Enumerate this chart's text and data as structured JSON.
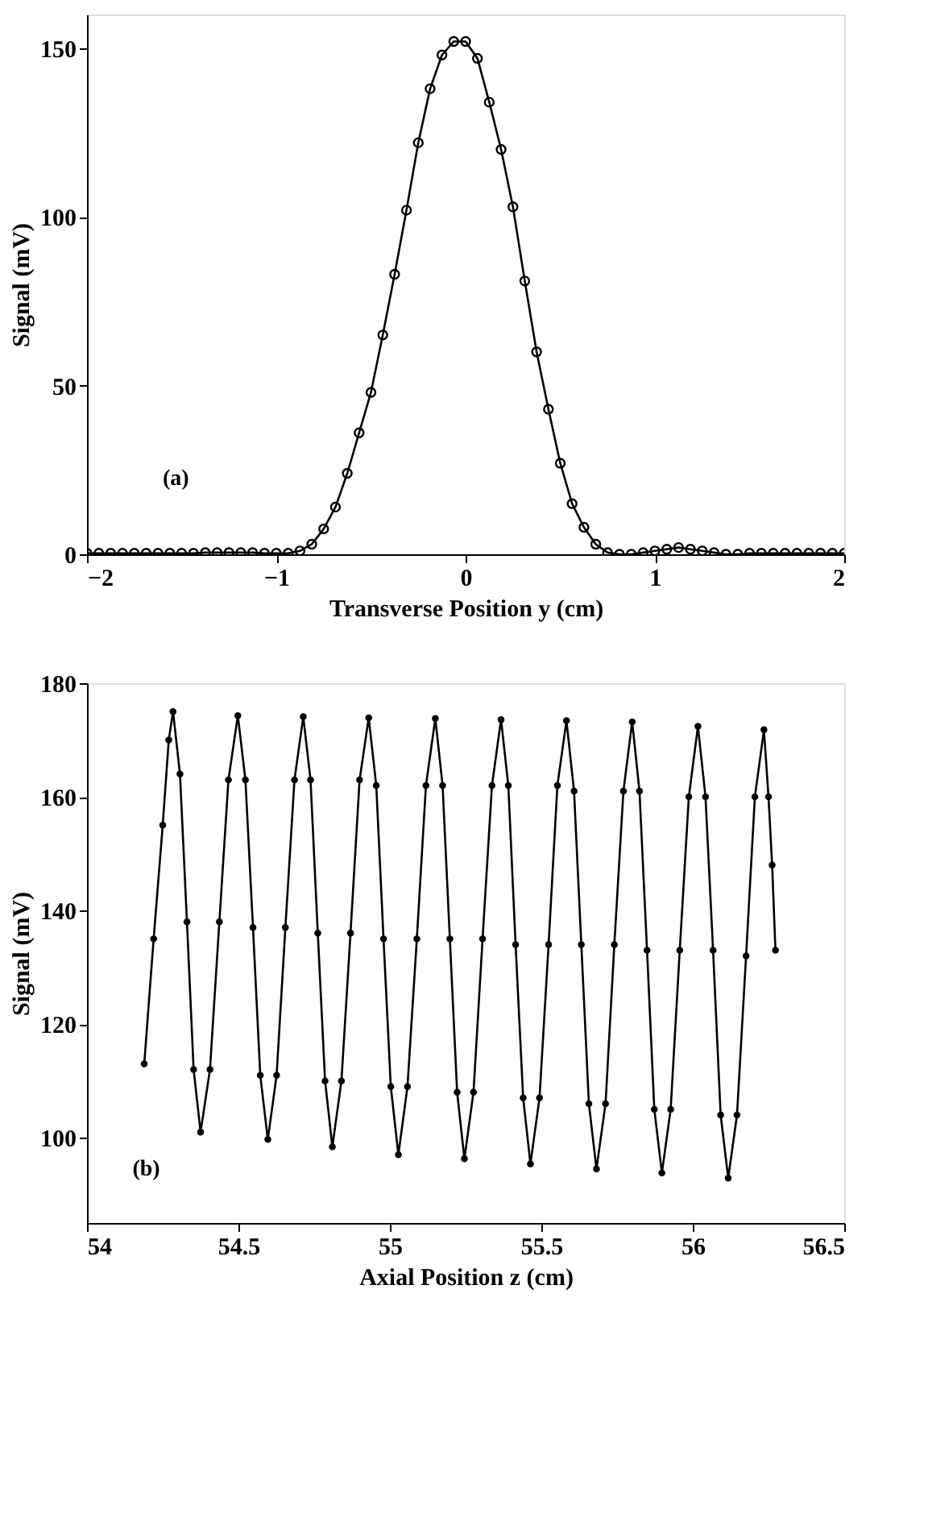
{
  "chart_data": [
    {
      "type": "line",
      "marker": "circle",
      "grid": false,
      "xlabel": "Transverse Position y (cm)",
      "ylabel": "Signal (mV)",
      "annotations": [
        "(a)"
      ],
      "xlim": [
        -2,
        2
      ],
      "ylim": [
        0,
        160
      ],
      "xticks": [
        -2,
        -1,
        0,
        1,
        2
      ],
      "yticks": [
        0,
        50,
        100,
        150
      ],
      "x": [
        -2,
        -1.9375,
        -1.875,
        -1.8125,
        -1.75,
        -1.6875,
        -1.625,
        -1.5625,
        -1.5,
        -1.4375,
        -1.375,
        -1.3125,
        -1.25,
        -1.1875,
        -1.125,
        -1.0625,
        -1,
        -0.9375,
        -0.875,
        -0.8125,
        -0.75,
        -0.6875,
        -0.625,
        -0.5625,
        -0.5,
        -0.4375,
        -0.375,
        -0.3125,
        -0.25,
        -0.1875,
        -0.125,
        -0.0625,
        0,
        0.0625,
        0.125,
        0.1875,
        0.25,
        0.3125,
        0.375,
        0.4375,
        0.5,
        0.5625,
        0.625,
        0.6875,
        0.75,
        0.8125,
        0.875,
        0.9375,
        1,
        1.0625,
        1.125,
        1.1875,
        1.25,
        1.3125,
        1.375,
        1.4375,
        1.5,
        1.5625,
        1.625,
        1.6875,
        1.75,
        1.8125,
        1.875,
        1.9375,
        2
      ],
      "series": [
        {
          "color": "#000000",
          "values": [
            0.3,
            0.3,
            0.3,
            0.3,
            0.3,
            0.3,
            0.3,
            0.3,
            0.3,
            0.3,
            0.5,
            0.5,
            0.5,
            0.5,
            0.5,
            0.3,
            0.3,
            0.3,
            1,
            3,
            7.5,
            14,
            24,
            36,
            48,
            65,
            83,
            102,
            122,
            138,
            148,
            152,
            152,
            147,
            134,
            120,
            103,
            81,
            60,
            43,
            27,
            15,
            8,
            3,
            0.5,
            0,
            0,
            0.5,
            1,
            1.5,
            2,
            1.5,
            1,
            0.5,
            0,
            0,
            0.3,
            0.3,
            0.3,
            0.3,
            0.3,
            0.3,
            0.3,
            0.3,
            0.3
          ]
        }
      ]
    },
    {
      "type": "line",
      "marker": "circle",
      "grid": false,
      "xlabel": "Axial Position z (cm)",
      "ylabel": "Signal (mV)",
      "annotations": [
        "(b)"
      ],
      "xlim": [
        54,
        56.5
      ],
      "ylim": [
        85,
        180
      ],
      "xticks": [
        54,
        54.5,
        55,
        55.5,
        56,
        56.5
      ],
      "yticks": [
        100,
        120,
        140,
        160,
        180
      ],
      "x": [
        54.189,
        54.22,
        54.25,
        54.27,
        54.284,
        54.307,
        54.33,
        54.352,
        54.375,
        54.406,
        54.437,
        54.467,
        54.498,
        54.523,
        54.548,
        54.572,
        54.597,
        54.626,
        54.655,
        54.685,
        54.714,
        54.738,
        54.762,
        54.786,
        54.81,
        54.84,
        54.87,
        54.9,
        54.93,
        54.955,
        54.979,
        55.003,
        55.028,
        55.058,
        55.089,
        55.119,
        55.15,
        55.174,
        55.198,
        55.222,
        55.246,
        55.276,
        55.306,
        55.337,
        55.367,
        55.391,
        55.415,
        55.44,
        55.464,
        55.494,
        55.524,
        55.553,
        55.583,
        55.608,
        55.632,
        55.657,
        55.682,
        55.712,
        55.741,
        55.771,
        55.8,
        55.824,
        55.849,
        55.873,
        55.898,
        55.927,
        55.957,
        55.987,
        56.017,
        56.042,
        56.067,
        56.092,
        56.117,
        56.146,
        56.176,
        56.205,
        56.235,
        56.25,
        56.262,
        56.273
      ],
      "series": [
        {
          "color": "#000000",
          "values": [
            113,
            135,
            155,
            170,
            175,
            164,
            138,
            112,
            101,
            112,
            138,
            163,
            174.3,
            163,
            137,
            111,
            99.7,
            111,
            137,
            163,
            174.1,
            163,
            136,
            110,
            98.4,
            110,
            136,
            163,
            173.9,
            162,
            135,
            109,
            97,
            109,
            135,
            162,
            173.8,
            162,
            135,
            108,
            96.3,
            108,
            135,
            162,
            173.6,
            162,
            134,
            107,
            95.4,
            107,
            134,
            162,
            173.4,
            161,
            134,
            106,
            94.5,
            106,
            134,
            161,
            173.2,
            161,
            133,
            105,
            93.8,
            105,
            133,
            160,
            172.4,
            160,
            133,
            104,
            92.9,
            104,
            132,
            160,
            171.8,
            160,
            148,
            133
          ]
        }
      ]
    }
  ]
}
